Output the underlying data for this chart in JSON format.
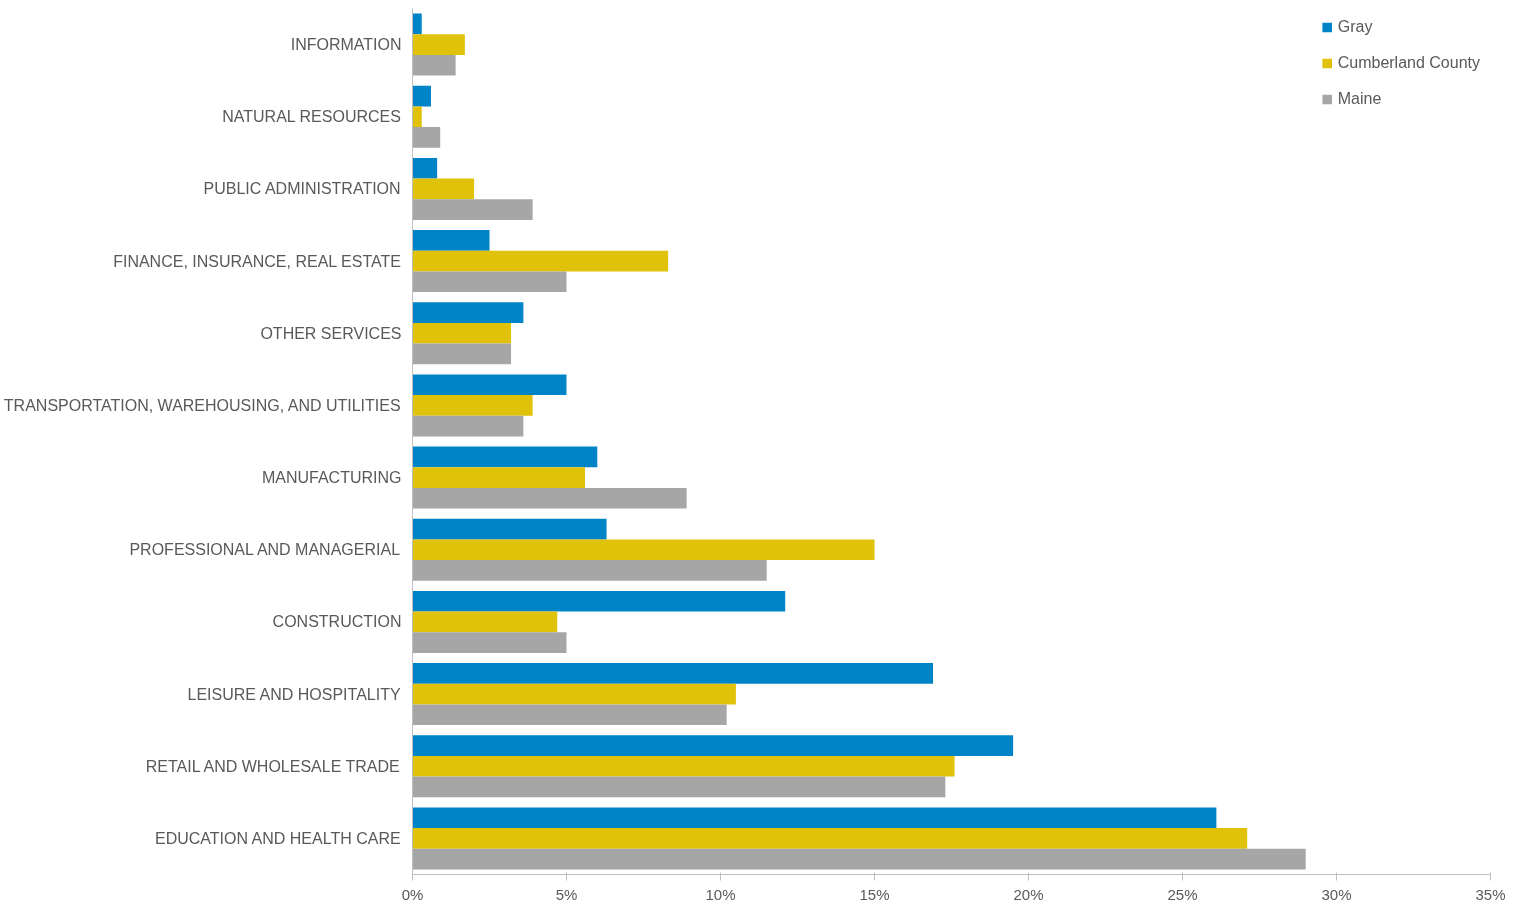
{
  "chart_data": {
    "type": "bar",
    "orientation": "horizontal",
    "categories": [
      "INFORMATION",
      "NATURAL RESOURCES",
      "PUBLIC ADMINISTRATION",
      "FINANCE, INSURANCE, REAL ESTATE",
      "OTHER SERVICES",
      "TRANSPORTATION, WAREHOUSING, AND UTILITIES",
      "MANUFACTURING",
      "PROFESSIONAL AND MANAGERIAL",
      "CONSTRUCTION",
      "LEISURE AND HOSPITALITY",
      "RETAIL AND WHOLESALE TRADE",
      "EDUCATION AND HEALTH CARE"
    ],
    "series": [
      {
        "name": "Gray",
        "color": "#0084c8",
        "values": [
          0.3,
          0.6,
          0.8,
          2.5,
          3.6,
          5.0,
          6.0,
          6.3,
          12.1,
          16.9,
          19.5,
          26.1
        ]
      },
      {
        "name": "Cumberland County",
        "color": "#e0c20a",
        "values": [
          1.7,
          0.3,
          2.0,
          8.3,
          3.2,
          3.9,
          5.6,
          15.0,
          4.7,
          10.5,
          17.6,
          27.1
        ]
      },
      {
        "name": "Maine",
        "color": "#a6a6a6",
        "values": [
          1.4,
          0.9,
          3.9,
          5.0,
          3.2,
          3.6,
          8.9,
          11.5,
          5.0,
          10.2,
          17.3,
          29.0
        ]
      }
    ],
    "xlim": [
      0,
      35
    ],
    "xticks": [
      {
        "value": 0,
        "label": "0%"
      },
      {
        "value": 5,
        "label": "5%"
      },
      {
        "value": 10,
        "label": "10%"
      },
      {
        "value": 15,
        "label": "15%"
      },
      {
        "value": 20,
        "label": "20%"
      },
      {
        "value": 25,
        "label": "25%"
      },
      {
        "value": 30,
        "label": "30%"
      },
      {
        "value": 35,
        "label": "35%"
      }
    ],
    "grid": false,
    "legend": "top right"
  }
}
